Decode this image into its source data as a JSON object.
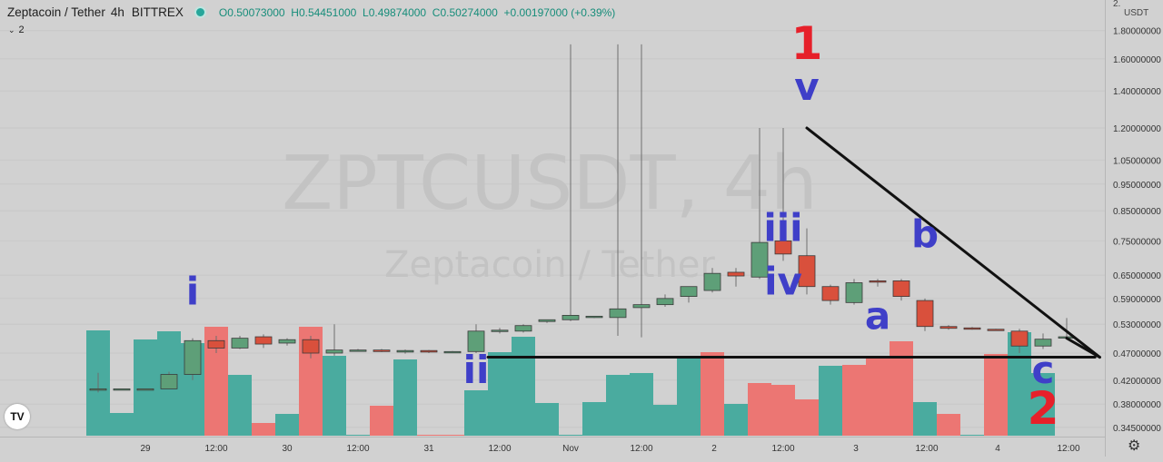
{
  "header": {
    "symbol": "Zeptacoin / Tether",
    "interval": "4h",
    "exchange": "BITTREX",
    "open": "O0.50073000",
    "high": "H0.54451000",
    "low": "L0.49874000",
    "close": "C0.50274000",
    "change": "+0.00197000 (+0.39%)",
    "indicators_count": "2",
    "status_color": "#26a69a"
  },
  "watermark": {
    "ticker": "ZPTCUSDT, 4h",
    "name": "Zeptacoin / Tether"
  },
  "price_axis": {
    "currency": "USDT",
    "top_partial": "2.",
    "scale": "log",
    "ticks": [
      1.8,
      1.6,
      1.4,
      1.2,
      1.05,
      0.95,
      0.85,
      0.75,
      0.65,
      0.59,
      0.53,
      0.47,
      0.42,
      0.38,
      0.345
    ],
    "labels": [
      "1.80000000",
      "1.60000000",
      "1.40000000",
      "1.20000000",
      "1.05000000",
      "0.95000000",
      "0.85000000",
      "0.75000000",
      "0.65000000",
      "0.59000000",
      "0.53000000",
      "0.47000000",
      "0.42000000",
      "0.38000000",
      "0.34500000"
    ]
  },
  "time_axis": {
    "labels": [
      "29",
      "12:00",
      "30",
      "12:00",
      "31",
      "12:00",
      "Nov",
      "12:00",
      "2",
      "12:00",
      "3",
      "12:00",
      "4",
      "12:00"
    ]
  },
  "chart_data": {
    "type": "candlestick",
    "scale": "log",
    "colors": {
      "up": "#5e9f78",
      "down": "#d9503c",
      "vol_up": "#4aab9f",
      "vol_down": "#ec7673",
      "annotation_blue": "#3f3fc8",
      "annotation_red": "#e6202a",
      "trendline": "#111111"
    },
    "candles": [
      {
        "o": 0.404,
        "h": 0.433,
        "l": 0.399,
        "c": 0.405
      },
      {
        "o": 0.405,
        "h": 0.405,
        "l": 0.405,
        "c": 0.405
      },
      {
        "o": 0.405,
        "h": 0.405,
        "l": 0.405,
        "c": 0.405
      },
      {
        "o": 0.405,
        "h": 0.435,
        "l": 0.405,
        "c": 0.43
      },
      {
        "o": 0.43,
        "h": 0.5,
        "l": 0.42,
        "c": 0.495
      },
      {
        "o": 0.495,
        "h": 0.505,
        "l": 0.47,
        "c": 0.48
      },
      {
        "o": 0.48,
        "h": 0.505,
        "l": 0.478,
        "c": 0.5
      },
      {
        "o": 0.503,
        "h": 0.508,
        "l": 0.48,
        "c": 0.488
      },
      {
        "o": 0.49,
        "h": 0.5,
        "l": 0.485,
        "c": 0.497
      },
      {
        "o": 0.497,
        "h": 0.505,
        "l": 0.46,
        "c": 0.47
      },
      {
        "o": 0.47,
        "h": 0.53,
        "l": 0.465,
        "c": 0.476
      },
      {
        "o": 0.476,
        "h": 0.478,
        "l": 0.473,
        "c": 0.476
      },
      {
        "o": 0.476,
        "h": 0.478,
        "l": 0.472,
        "c": 0.473
      },
      {
        "o": 0.472,
        "h": 0.477,
        "l": 0.469,
        "c": 0.475
      },
      {
        "o": 0.475,
        "h": 0.476,
        "l": 0.47,
        "c": 0.472
      },
      {
        "o": 0.472,
        "h": 0.474,
        "l": 0.47,
        "c": 0.473
      },
      {
        "o": 0.473,
        "h": 0.53,
        "l": 0.47,
        "c": 0.515
      },
      {
        "o": 0.515,
        "h": 0.522,
        "l": 0.51,
        "c": 0.517
      },
      {
        "o": 0.515,
        "h": 0.53,
        "l": 0.512,
        "c": 0.527
      },
      {
        "o": 0.536,
        "h": 0.538,
        "l": 0.533,
        "c": 0.54
      },
      {
        "o": 0.54,
        "h": 1.7,
        "l": 0.537,
        "c": 0.55
      },
      {
        "o": 0.546,
        "h": 0.548,
        "l": 0.544,
        "c": 0.548
      },
      {
        "o": 0.545,
        "h": 1.7,
        "l": 0.505,
        "c": 0.565
      },
      {
        "o": 0.568,
        "h": 1.7,
        "l": 0.502,
        "c": 0.575
      },
      {
        "o": 0.575,
        "h": 0.6,
        "l": 0.57,
        "c": 0.59
      },
      {
        "o": 0.595,
        "h": 0.61,
        "l": 0.58,
        "c": 0.62
      },
      {
        "o": 0.61,
        "h": 0.67,
        "l": 0.605,
        "c": 0.655
      },
      {
        "o": 0.658,
        "h": 0.67,
        "l": 0.62,
        "c": 0.648
      },
      {
        "o": 0.645,
        "h": 1.2,
        "l": 0.64,
        "c": 0.745
      },
      {
        "o": 0.75,
        "h": 1.2,
        "l": 0.69,
        "c": 0.71
      },
      {
        "o": 0.705,
        "h": 0.79,
        "l": 0.6,
        "c": 0.62
      },
      {
        "o": 0.62,
        "h": 0.625,
        "l": 0.575,
        "c": 0.585
      },
      {
        "o": 0.58,
        "h": 0.64,
        "l": 0.575,
        "c": 0.63
      },
      {
        "o": 0.635,
        "h": 0.64,
        "l": 0.62,
        "c": 0.632
      },
      {
        "o": 0.635,
        "h": 0.64,
        "l": 0.585,
        "c": 0.595
      },
      {
        "o": 0.585,
        "h": 0.59,
        "l": 0.515,
        "c": 0.525
      },
      {
        "o": 0.525,
        "h": 0.528,
        "l": 0.518,
        "c": 0.521
      },
      {
        "o": 0.522,
        "h": 0.524,
        "l": 0.518,
        "c": 0.519
      },
      {
        "o": 0.519,
        "h": 0.52,
        "l": 0.517,
        "c": 0.518
      },
      {
        "o": 0.515,
        "h": 0.52,
        "l": 0.47,
        "c": 0.484
      },
      {
        "o": 0.484,
        "h": 0.51,
        "l": 0.478,
        "c": 0.498
      },
      {
        "o": 0.502,
        "h": 0.544,
        "l": 0.498,
        "c": 0.503
      }
    ],
    "volume": [
      {
        "v": 116,
        "dir": "up"
      },
      {
        "v": 25,
        "dir": "up"
      },
      {
        "v": 106,
        "dir": "up"
      },
      {
        "v": 115,
        "dir": "up"
      },
      {
        "v": 102,
        "dir": "up"
      },
      {
        "v": 120,
        "dir": "down"
      },
      {
        "v": 67,
        "dir": "up"
      },
      {
        "v": 14,
        "dir": "down"
      },
      {
        "v": 24,
        "dir": "up"
      },
      {
        "v": 120,
        "dir": "down"
      },
      {
        "v": 88,
        "dir": "up"
      },
      {
        "v": 1,
        "dir": "up"
      },
      {
        "v": 33,
        "dir": "down"
      },
      {
        "v": 84,
        "dir": "up"
      },
      {
        "v": 1,
        "dir": "down"
      },
      {
        "v": 1,
        "dir": "down"
      },
      {
        "v": 50,
        "dir": "up"
      },
      {
        "v": 92,
        "dir": "up"
      },
      {
        "v": 109,
        "dir": "up"
      },
      {
        "v": 36,
        "dir": "up"
      },
      {
        "v": 1,
        "dir": "up"
      },
      {
        "v": 37,
        "dir": "up"
      },
      {
        "v": 67,
        "dir": "up"
      },
      {
        "v": 69,
        "dir": "up"
      },
      {
        "v": 34,
        "dir": "up"
      },
      {
        "v": 85,
        "dir": "up"
      },
      {
        "v": 92,
        "dir": "down"
      },
      {
        "v": 35,
        "dir": "up"
      },
      {
        "v": 58,
        "dir": "down"
      },
      {
        "v": 56,
        "dir": "down"
      },
      {
        "v": 40,
        "dir": "down"
      },
      {
        "v": 77,
        "dir": "up"
      },
      {
        "v": 78,
        "dir": "down"
      },
      {
        "v": 85,
        "dir": "down"
      },
      {
        "v": 104,
        "dir": "down"
      },
      {
        "v": 37,
        "dir": "up"
      },
      {
        "v": 24,
        "dir": "down"
      },
      {
        "v": 1,
        "dir": "up"
      },
      {
        "v": 90,
        "dir": "down"
      },
      {
        "v": 114,
        "dir": "up"
      },
      {
        "v": 69,
        "dir": "up"
      },
      {
        "v": 0,
        "dir": "up"
      }
    ],
    "annotations": [
      {
        "text": "i",
        "color": "blue",
        "candle": 4,
        "price": 0.575
      },
      {
        "text": "ii",
        "color": "blue",
        "candle": 16,
        "price": 0.415
      },
      {
        "text": "iii",
        "color": "blue",
        "candle": 29,
        "price": 0.75
      },
      {
        "text": "iv",
        "color": "blue",
        "candle": 29,
        "price": 0.6
      },
      {
        "text": "v",
        "color": "blue",
        "candle": 30,
        "price": 1.35
      },
      {
        "text": "1",
        "color": "red",
        "candle": 30,
        "price": 1.6
      },
      {
        "text": "a",
        "color": "blue",
        "candle": 33,
        "price": 0.52
      },
      {
        "text": "b",
        "color": "blue",
        "candle": 35,
        "price": 0.73
      },
      {
        "text": "c",
        "color": "blue",
        "candle": 40,
        "price": 0.415
      },
      {
        "text": "2",
        "color": "red",
        "candle": 40,
        "price": 0.35
      }
    ],
    "trendlines": [
      {
        "from": {
          "candle": 16.5,
          "price": 0.462
        },
        "to": {
          "candle": 42.2,
          "price": 0.462
        }
      },
      {
        "from": {
          "candle": 30.0,
          "price": 1.2
        },
        "to": {
          "candle": 42.4,
          "price": 0.462
        }
      },
      {
        "from": {
          "candle": 41.0,
          "price": 0.5
        },
        "to": {
          "candle": 42.4,
          "price": 0.462
        }
      }
    ]
  }
}
